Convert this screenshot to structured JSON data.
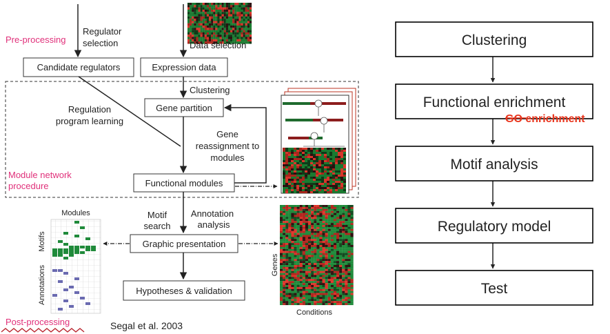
{
  "left": {
    "label_preprocessing": "Pre-processing",
    "label_module_network": [
      "Module network",
      "procedure"
    ],
    "label_postprocessing": "Post-processing",
    "citation": "Segal et al. 2003",
    "regulator_selection": [
      "Regulator",
      "selection"
    ],
    "data_selection": "Data selection",
    "box_candidate": "Candidate regulators",
    "box_expression": "Expression data",
    "clustering": "Clustering",
    "box_partition": "Gene partition",
    "regulation_program": [
      "Regulation",
      "program learning"
    ],
    "gene_reassignment": [
      "Gene",
      "reassignment to",
      "modules"
    ],
    "box_functional": "Functional modules",
    "motif_search": [
      "Motif",
      "search"
    ],
    "annotation_analysis": [
      "Annotation",
      "analysis"
    ],
    "box_graphic": "Graphic presentation",
    "box_hypotheses": "Hypotheses & validation",
    "matrix_modules": "Modules",
    "matrix_motifs": "Motifs",
    "matrix_annotations": "Annotations",
    "heatmap_genes": "Genes",
    "heatmap_conditions": "Conditions"
  },
  "right": {
    "steps": [
      "Clustering",
      "Functional enrichment",
      "Motif analysis",
      "Regulatory model",
      "Test"
    ],
    "overlay_note": "GO enrichment"
  },
  "colors": {
    "pink": "#e0307a",
    "red_note": "#e8341c",
    "heat_red": "#c8201e",
    "heat_green": "#1f8a3a"
  }
}
